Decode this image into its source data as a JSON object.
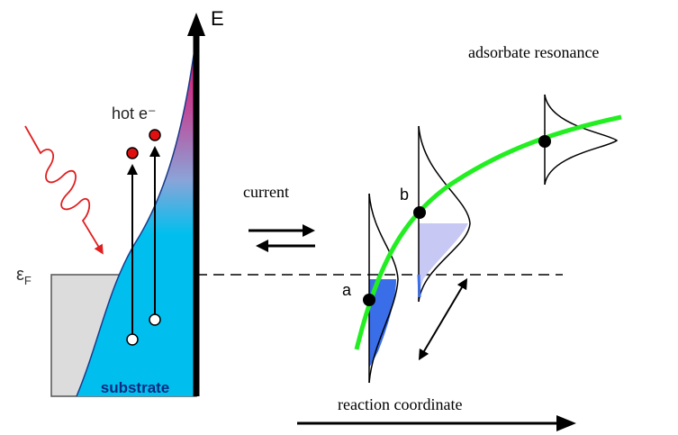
{
  "axis_label": "E",
  "hot_electrons": "hot e⁻",
  "fermi_level": {
    "symbol": "ε",
    "subscript": "F"
  },
  "substrate": "substrate",
  "current": "current",
  "state_a": "a",
  "state_b": "b",
  "adsorbate_resonance": "adsorbate resonance",
  "reaction_coordinate": "reaction coordinate"
}
